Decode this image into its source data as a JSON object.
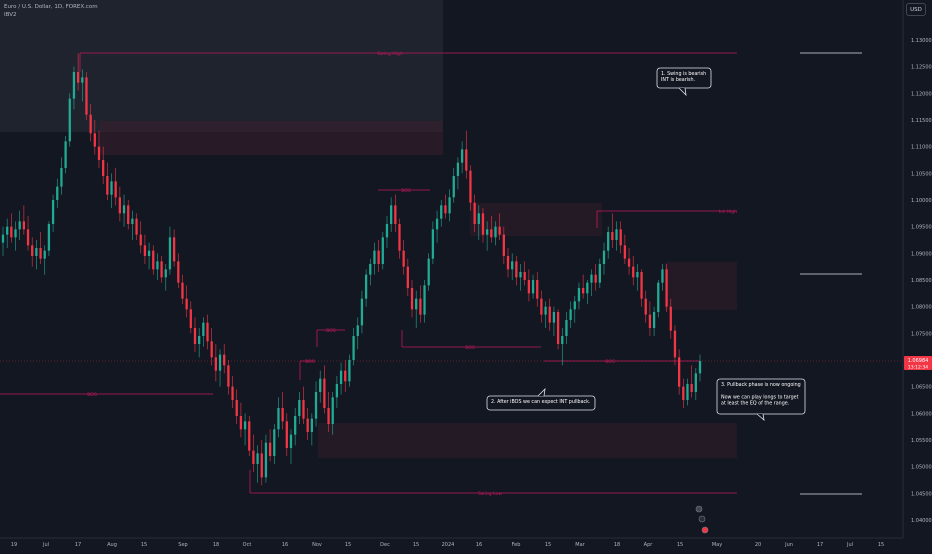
{
  "header": {
    "symbol_line": "Euro / U.S. Dollar, 1D, FOREX.com",
    "indicator": "IBV2",
    "currency": "USD"
  },
  "chart_data": {
    "type": "candlestick",
    "title": "Euro / U.S. Dollar, 1D, FOREX.com",
    "ylim": [
      1.0375,
      1.1365
    ],
    "y_ticks": [
      "1.13000",
      "1.12500",
      "1.12000",
      "1.11500",
      "1.11000",
      "1.10500",
      "1.10000",
      "1.09500",
      "1.09000",
      "1.08500",
      "1.08000",
      "1.07500",
      "1.07000",
      "1.06500",
      "1.06000",
      "1.05500",
      "1.05000",
      "1.04500",
      "1.04000"
    ],
    "x_ticks": [
      "19",
      "Jul",
      "17",
      "Aug",
      "15",
      "Sep",
      "18",
      "Oct",
      "16",
      "Nov",
      "15",
      "Dec",
      "15",
      "2024",
      "16",
      "Feb",
      "15",
      "Mar",
      "18",
      "Apr",
      "15",
      "May",
      "20",
      "Jun",
      "17",
      "Jul",
      "15"
    ],
    "bull_color": "#22ab94",
    "bear_color": "#f23645",
    "level_color": "#c2185b",
    "current_price": "1.06984",
    "current_price_time": "13:12:34",
    "candles_ohlc_approx": [
      [
        1.092,
        1.095,
        1.0895,
        1.0935
      ],
      [
        1.0935,
        1.0965,
        1.091,
        1.095
      ],
      [
        1.095,
        1.0975,
        1.092,
        1.093
      ],
      [
        1.093,
        1.096,
        1.0905,
        1.0945
      ],
      [
        1.0945,
        1.098,
        1.0925,
        1.096
      ],
      [
        1.096,
        1.099,
        1.0935,
        1.0945
      ],
      [
        1.0945,
        1.097,
        1.0905,
        1.0915
      ],
      [
        1.0915,
        1.093,
        1.0875,
        1.0895
      ],
      [
        1.0895,
        1.0925,
        1.087,
        1.091
      ],
      [
        1.091,
        1.094,
        1.088,
        1.089
      ],
      [
        1.089,
        1.0915,
        1.086,
        1.0905
      ],
      [
        1.0905,
        1.096,
        1.0895,
        1.0955
      ],
      [
        1.0955,
        1.101,
        1.094,
        1.1
      ],
      [
        1.1,
        1.104,
        1.0985,
        1.1025
      ],
      [
        1.1025,
        1.108,
        1.101,
        1.106
      ],
      [
        1.106,
        1.112,
        1.105,
        1.111
      ],
      [
        1.111,
        1.12,
        1.11,
        1.119
      ],
      [
        1.119,
        1.125,
        1.117,
        1.124
      ],
      [
        1.124,
        1.1275,
        1.1205,
        1.122
      ],
      [
        1.122,
        1.1245,
        1.1185,
        1.123
      ],
      [
        1.123,
        1.124,
        1.115,
        1.116
      ],
      [
        1.116,
        1.118,
        1.111,
        1.1125
      ],
      [
        1.1125,
        1.115,
        1.1085,
        1.11
      ],
      [
        1.11,
        1.113,
        1.106,
        1.1075
      ],
      [
        1.1075,
        1.11,
        1.103,
        1.1045
      ],
      [
        1.1045,
        1.107,
        1.1,
        1.101
      ],
      [
        1.101,
        1.105,
        1.0985,
        1.1035
      ],
      [
        1.1035,
        1.106,
        1.099,
        1.1005
      ],
      [
        1.1005,
        1.1025,
        1.096,
        1.0975
      ],
      [
        1.0975,
        1.101,
        1.095,
        1.099
      ],
      [
        1.099,
        1.1,
        1.0945,
        1.0955
      ],
      [
        1.0955,
        1.098,
        1.0925,
        1.0965
      ],
      [
        1.0965,
        1.0975,
        1.0925,
        1.0935
      ],
      [
        1.0935,
        1.096,
        1.09,
        1.0915
      ],
      [
        1.0915,
        1.0935,
        1.088,
        1.0895
      ],
      [
        1.0895,
        1.092,
        1.087,
        1.0905
      ],
      [
        1.0905,
        1.0915,
        1.086,
        1.087
      ],
      [
        1.087,
        1.09,
        1.085,
        1.0885
      ],
      [
        1.0885,
        1.0895,
        1.0845,
        1.0855
      ],
      [
        1.0855,
        1.088,
        1.083,
        1.087
      ],
      [
        1.087,
        1.095,
        1.086,
        1.093
      ],
      [
        1.093,
        1.0945,
        1.0875,
        1.0885
      ],
      [
        1.0885,
        1.09,
        1.0835,
        1.0845
      ],
      [
        1.0845,
        1.086,
        1.0805,
        1.0815
      ],
      [
        1.0815,
        1.084,
        1.078,
        1.0795
      ],
      [
        1.0795,
        1.081,
        1.075,
        1.076
      ],
      [
        1.076,
        1.078,
        1.0715,
        1.073
      ],
      [
        1.073,
        1.076,
        1.0705,
        1.0745
      ],
      [
        1.0745,
        1.078,
        1.0725,
        1.077
      ],
      [
        1.077,
        1.0785,
        1.072,
        1.0735
      ],
      [
        1.0735,
        1.076,
        1.069,
        1.0705
      ],
      [
        1.0705,
        1.073,
        1.066,
        1.068
      ],
      [
        1.068,
        1.072,
        1.065,
        1.071
      ],
      [
        1.071,
        1.073,
        1.0675,
        1.069
      ],
      [
        1.069,
        1.07,
        1.0635,
        1.065
      ],
      [
        1.065,
        1.067,
        1.061,
        1.0625
      ],
      [
        1.0625,
        1.0645,
        1.058,
        1.0595
      ],
      [
        1.0595,
        1.062,
        1.0555,
        1.057
      ],
      [
        1.057,
        1.06,
        1.054,
        1.0585
      ],
      [
        1.0585,
        1.0595,
        1.052,
        1.053
      ],
      [
        1.053,
        1.056,
        1.049,
        1.0505
      ],
      [
        1.0505,
        1.054,
        1.047,
        1.0525
      ],
      [
        1.0525,
        1.055,
        1.0465,
        1.048
      ],
      [
        1.048,
        1.056,
        1.047,
        1.0545
      ],
      [
        1.0545,
        1.057,
        1.051,
        1.052
      ],
      [
        1.052,
        1.058,
        1.0505,
        1.057
      ],
      [
        1.057,
        1.063,
        1.0555,
        1.061
      ],
      [
        1.061,
        1.064,
        1.057,
        1.0585
      ],
      [
        1.0585,
        1.06,
        1.052,
        1.0535
      ],
      [
        1.0535,
        1.057,
        1.0505,
        1.056
      ],
      [
        1.056,
        1.061,
        1.054,
        1.0595
      ],
      [
        1.0595,
        1.064,
        1.058,
        1.0625
      ],
      [
        1.0625,
        1.065,
        1.058,
        1.059
      ],
      [
        1.059,
        1.061,
        1.055,
        1.0565
      ],
      [
        1.0565,
        1.06,
        1.054,
        1.059
      ],
      [
        1.059,
        1.066,
        1.0575,
        1.064
      ],
      [
        1.064,
        1.068,
        1.062,
        1.0665
      ],
      [
        1.0665,
        1.069,
        1.06,
        1.061
      ],
      [
        1.061,
        1.064,
        1.0565,
        1.058
      ],
      [
        1.058,
        1.064,
        1.056,
        1.063
      ],
      [
        1.063,
        1.067,
        1.061,
        1.0655
      ],
      [
        1.0655,
        1.0695,
        1.0635,
        1.068
      ],
      [
        1.068,
        1.07,
        1.064,
        1.066
      ],
      [
        1.066,
        1.071,
        1.065,
        1.07
      ],
      [
        1.07,
        1.076,
        1.069,
        1.0745
      ],
      [
        1.0745,
        1.078,
        1.072,
        1.0765
      ],
      [
        1.0765,
        1.083,
        1.075,
        1.0815
      ],
      [
        1.0815,
        1.087,
        1.08,
        1.086
      ],
      [
        1.086,
        1.089,
        1.084,
        1.088
      ],
      [
        1.088,
        1.092,
        1.086,
        1.0905
      ],
      [
        1.0905,
        1.0925,
        1.0865,
        1.088
      ],
      [
        1.088,
        1.094,
        1.087,
        1.093
      ],
      [
        1.093,
        1.097,
        1.091,
        1.0955
      ],
      [
        1.0955,
        1.1005,
        1.094,
        1.099
      ],
      [
        1.099,
        1.101,
        1.094,
        1.0955
      ],
      [
        1.0955,
        1.0965,
        1.089,
        1.0905
      ],
      [
        1.0905,
        1.0925,
        1.086,
        1.0875
      ],
      [
        1.0875,
        1.089,
        1.082,
        1.0835
      ],
      [
        1.0835,
        1.085,
        1.078,
        1.0795
      ],
      [
        1.0795,
        1.083,
        1.076,
        1.0815
      ],
      [
        1.0815,
        1.084,
        1.077,
        1.0785
      ],
      [
        1.0785,
        1.085,
        1.077,
        1.084
      ],
      [
        1.084,
        1.09,
        1.083,
        1.089
      ],
      [
        1.089,
        1.096,
        1.088,
        1.0945
      ],
      [
        1.0945,
        1.098,
        1.092,
        1.0965
      ],
      [
        1.0965,
        1.1,
        1.095,
        1.099
      ],
      [
        1.099,
        1.101,
        1.0965,
        1.0975
      ],
      [
        1.0975,
        1.102,
        1.096,
        1.1005
      ],
      [
        1.1005,
        1.106,
        1.0995,
        1.1045
      ],
      [
        1.1045,
        1.108,
        1.102,
        1.107
      ],
      [
        1.107,
        1.111,
        1.105,
        1.1095
      ],
      [
        1.1095,
        1.113,
        1.104,
        1.1055
      ],
      [
        1.1055,
        1.1065,
        1.098,
        1.0995
      ],
      [
        1.0995,
        1.101,
        1.094,
        1.0955
      ],
      [
        1.0955,
        1.099,
        1.0925,
        1.0975
      ],
      [
        1.0975,
        1.0985,
        1.092,
        1.0935
      ],
      [
        1.0935,
        1.096,
        1.0905,
        1.0945
      ],
      [
        1.0945,
        1.097,
        1.092,
        1.093
      ],
      [
        1.093,
        1.096,
        1.0915,
        1.095
      ],
      [
        1.095,
        1.0975,
        1.0925,
        1.0935
      ],
      [
        1.0935,
        1.095,
        1.088,
        1.0895
      ],
      [
        1.0895,
        1.091,
        1.0855,
        1.087
      ],
      [
        1.087,
        1.09,
        1.085,
        1.0885
      ],
      [
        1.0885,
        1.0895,
        1.084,
        1.0855
      ],
      [
        1.0855,
        1.088,
        1.083,
        1.0865
      ],
      [
        1.0865,
        1.0885,
        1.084,
        1.085
      ],
      [
        1.085,
        1.087,
        1.081,
        1.0825
      ],
      [
        1.0825,
        1.086,
        1.0815,
        1.085
      ],
      [
        1.085,
        1.0865,
        1.08,
        1.0815
      ],
      [
        1.0815,
        1.083,
        1.077,
        1.0785
      ],
      [
        1.0785,
        1.081,
        1.076,
        1.08
      ],
      [
        1.08,
        1.0815,
        1.0755,
        1.077
      ],
      [
        1.077,
        1.08,
        1.0745,
        1.079
      ],
      [
        1.079,
        1.0795,
        1.072,
        1.073
      ],
      [
        1.073,
        1.076,
        1.069,
        1.0745
      ],
      [
        1.0745,
        1.079,
        1.073,
        1.0775
      ],
      [
        1.0775,
        1.081,
        1.076,
        1.0795
      ],
      [
        1.0795,
        1.082,
        1.077,
        1.081
      ],
      [
        1.081,
        1.0845,
        1.0795,
        1.0835
      ],
      [
        1.0835,
        1.086,
        1.0815,
        1.0825
      ],
      [
        1.0825,
        1.085,
        1.0805,
        1.0845
      ],
      [
        1.0845,
        1.087,
        1.082,
        1.086
      ],
      [
        1.086,
        1.088,
        1.083,
        1.0845
      ],
      [
        1.0845,
        1.089,
        1.0835,
        1.088
      ],
      [
        1.088,
        1.092,
        1.086,
        1.0905
      ],
      [
        1.0905,
        1.095,
        1.089,
        1.094
      ],
      [
        1.094,
        1.0975,
        1.091,
        1.0925
      ],
      [
        1.0925,
        1.096,
        1.0905,
        1.0945
      ],
      [
        1.0945,
        1.096,
        1.09,
        1.0915
      ],
      [
        1.0915,
        1.0935,
        1.088,
        1.089
      ],
      [
        1.089,
        1.091,
        1.086,
        1.0875
      ],
      [
        1.0875,
        1.0895,
        1.084,
        1.0855
      ],
      [
        1.0855,
        1.088,
        1.083,
        1.0865
      ],
      [
        1.0865,
        1.087,
        1.08,
        1.0815
      ],
      [
        1.0815,
        1.083,
        1.077,
        1.0785
      ],
      [
        1.0785,
        1.081,
        1.0745,
        1.076
      ],
      [
        1.076,
        1.08,
        1.0745,
        1.079
      ],
      [
        1.079,
        1.085,
        1.078,
        1.0845
      ],
      [
        1.0845,
        1.088,
        1.083,
        1.087
      ],
      [
        1.087,
        1.088,
        1.079,
        1.08
      ],
      [
        1.08,
        1.0815,
        1.074,
        1.0755
      ],
      [
        1.0755,
        1.0765,
        1.069,
        1.0705
      ],
      [
        1.0705,
        1.072,
        1.0635,
        1.065
      ],
      [
        1.065,
        1.0665,
        1.061,
        1.0625
      ],
      [
        1.0625,
        1.0665,
        1.0615,
        1.0655
      ],
      [
        1.0655,
        1.069,
        1.063,
        1.064
      ],
      [
        1.064,
        1.0685,
        1.0625,
        1.0675
      ],
      [
        1.0675,
        1.071,
        1.066,
        1.0698
      ]
    ],
    "levels": [
      {
        "label": "Swing High",
        "price": 1.1278
      },
      {
        "label": "Swing Low",
        "price": 1.045
      },
      {
        "label": "BOS",
        "price": 1.0643
      },
      {
        "label": "BOS",
        "price": 1.1015
      },
      {
        "label": "BOS",
        "price": 1.0728
      },
      {
        "label": "BOS",
        "price": 1.07
      },
      {
        "label": "BOS",
        "price": 1.07
      },
      {
        "label": "BOS",
        "price": 1.0758
      },
      {
        "label": "Int High",
        "price": 1.099
      }
    ],
    "annotations": [
      {
        "label": "note-1",
        "lines": [
          "1. Swing is bearish",
          "INT is bearish."
        ]
      },
      {
        "label": "note-2",
        "lines": [
          "2. After iBOS we can expect INT pullback."
        ]
      },
      {
        "label": "note-3",
        "lines": [
          "3. Pullback phase is now ongoing",
          "",
          "Now we can play longs to target",
          "at least the EQ of the range."
        ]
      }
    ]
  }
}
